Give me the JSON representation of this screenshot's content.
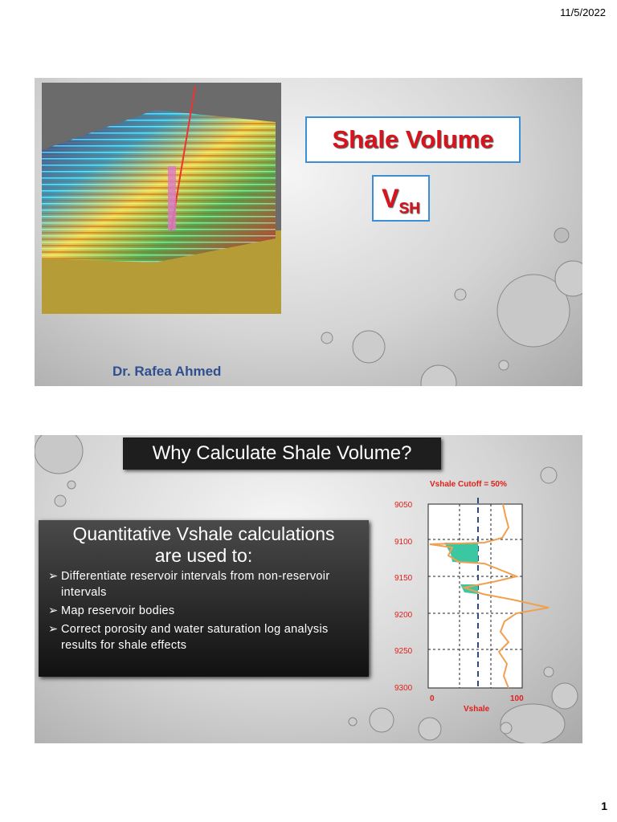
{
  "date": "11/5/2022",
  "page_number": "1",
  "slides": [
    {
      "title": "Shale Volume",
      "symbol": "V",
      "symbol_subscript": "SH",
      "author": "Dr. Rafea Ahmed"
    },
    {
      "title": "Why Calculate Shale Volume?",
      "box_heading": "Quantitative Vshale calculations are used to:",
      "bullets": [
        "Differentiate reservoir intervals from non-reservoir intervals",
        "Map reservoir bodies",
        "Correct  porosity and water saturation log analysis results for shale effects"
      ],
      "figure": {
        "cutoff_label": "Vshale Cutoff = 50%",
        "depth_ticks": [
          9050,
          9100,
          9150,
          9200,
          9250,
          9300
        ],
        "x_ticks": [
          0,
          100
        ],
        "x_label": "Vshale"
      }
    }
  ]
}
